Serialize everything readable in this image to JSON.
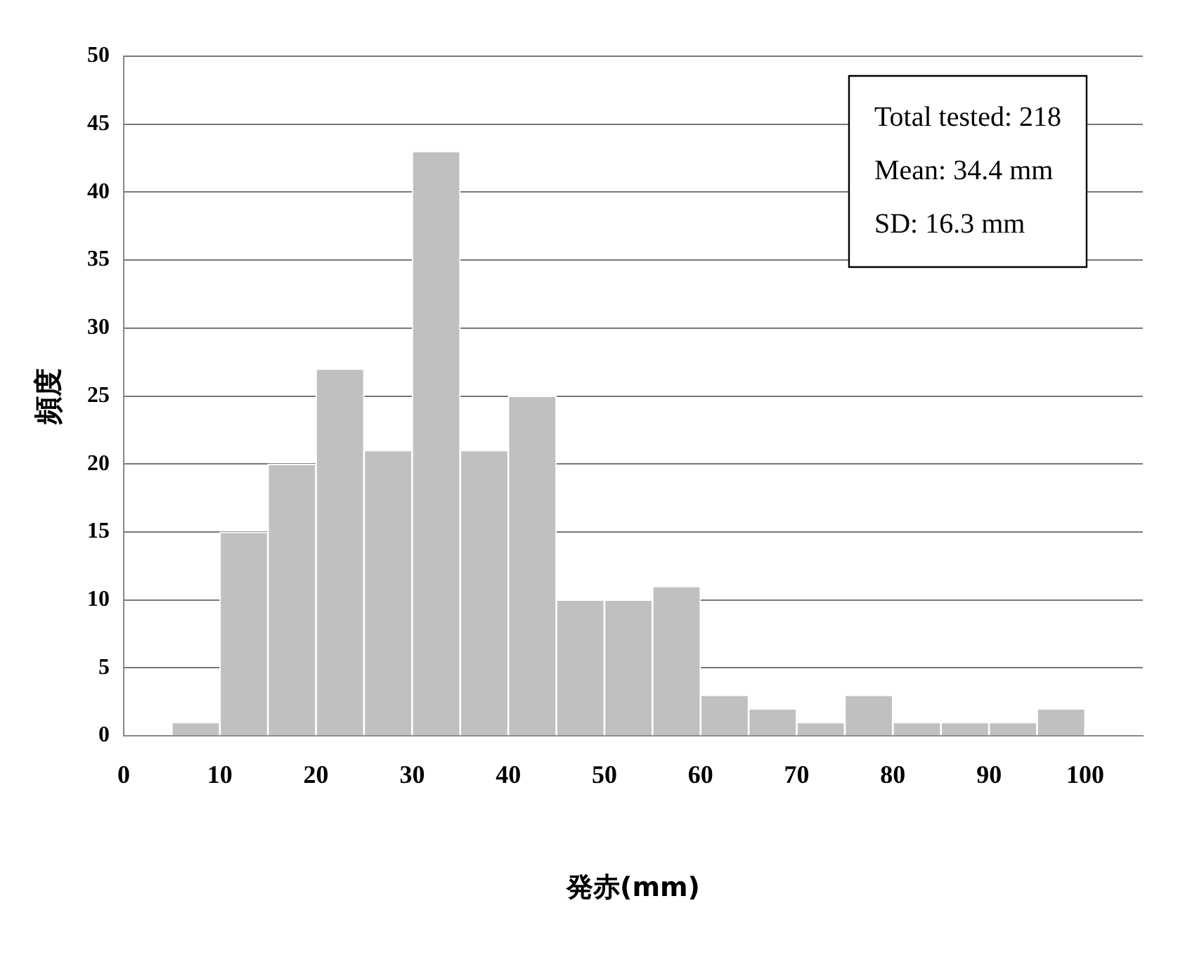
{
  "chart_data": {
    "type": "histogram",
    "xlabel": "発赤(mm)",
    "ylabel": "頻度",
    "bins": [
      5,
      10,
      15,
      20,
      25,
      30,
      35,
      40,
      45,
      50,
      55,
      60,
      65,
      70,
      75,
      80,
      85,
      90,
      95,
      100
    ],
    "values": [
      1,
      15,
      20,
      27,
      21,
      43,
      21,
      25,
      10,
      10,
      11,
      3,
      2,
      1,
      3,
      1,
      1,
      1,
      2
    ],
    "color": "#c0c0c0",
    "xlim": [
      0,
      106
    ],
    "xticks": [
      0,
      10,
      20,
      30,
      40,
      50,
      60,
      70,
      80,
      90,
      100
    ],
    "ylim": [
      0,
      50
    ],
    "yticks": [
      0,
      5,
      10,
      15,
      20,
      25,
      30,
      35,
      40,
      45,
      50
    ],
    "grid": "y",
    "legend": false,
    "annotations": [
      "Total tested: 218",
      "Mean: 34.4 mm",
      "SD: 16.3 mm"
    ]
  }
}
